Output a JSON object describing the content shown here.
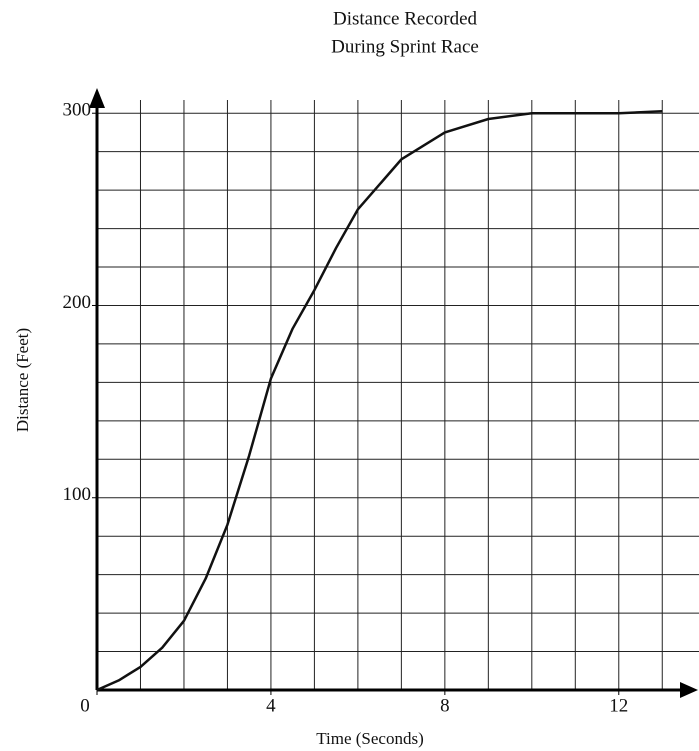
{
  "chart_data": {
    "type": "line",
    "title": [
      "Distance Recorded",
      "During Sprint Race"
    ],
    "x_label": "Time (Seconds)",
    "y_label": "Distance (Feet)",
    "x": [
      0,
      0.5,
      1,
      1.5,
      2,
      2.5,
      3,
      3.5,
      4,
      4.5,
      5,
      5.5,
      6,
      7,
      8,
      9,
      10,
      11,
      12,
      13
    ],
    "series": [
      {
        "name": "Distance",
        "color": "#111111",
        "values": [
          0,
          5,
          12,
          22,
          36,
          58,
          86,
          122,
          162,
          188,
          208,
          230,
          250,
          276,
          290,
          297,
          300,
          300,
          300,
          301
        ]
      }
    ],
    "xlim": [
      0,
      13.5
    ],
    "ylim": [
      0,
      310
    ],
    "xticks": [
      0,
      4,
      8,
      12
    ],
    "yticks": [
      100,
      200,
      300
    ],
    "grid": true,
    "x_grid_step": 1,
    "y_grid_step": 20
  }
}
